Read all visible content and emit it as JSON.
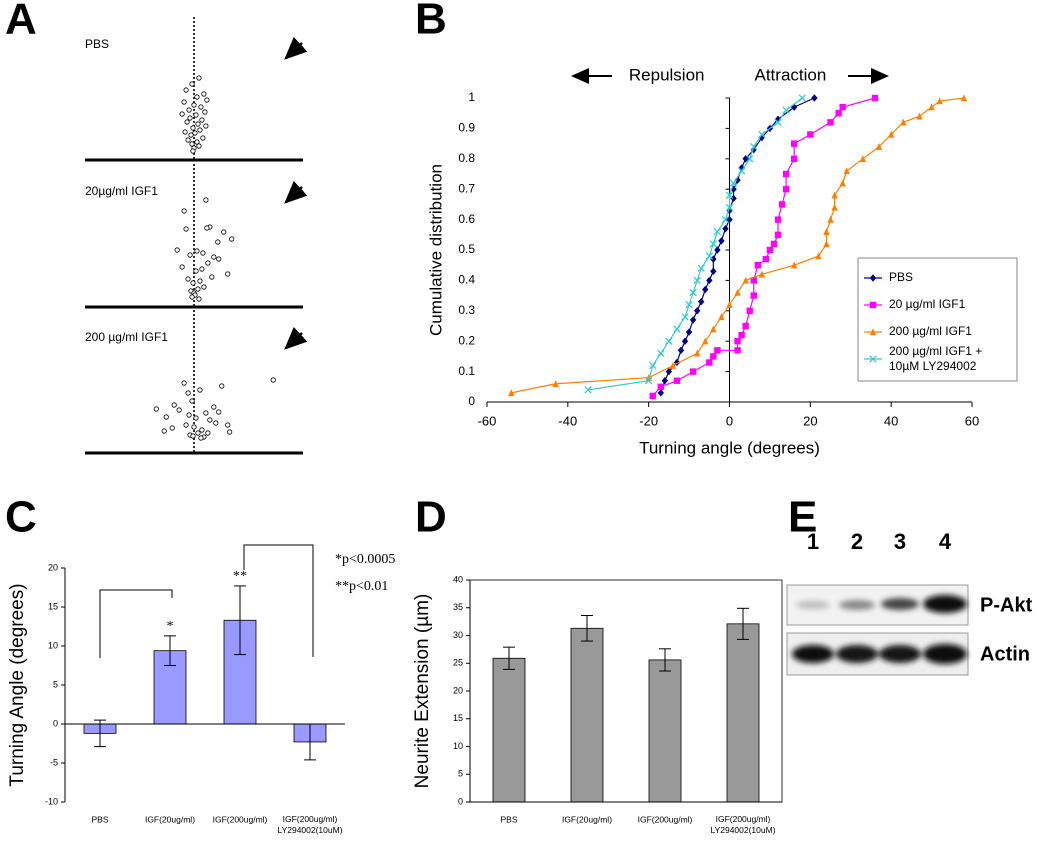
{
  "chart_data": [
    {
      "type": "scatter",
      "panel": "A",
      "title": "PBS",
      "xlim": [
        -110,
        110
      ],
      "ylim": [
        0,
        145
      ],
      "x": [
        5,
        -2,
        10,
        -8,
        3,
        13,
        -10,
        0,
        7,
        -5,
        11,
        -12,
        2,
        -4,
        8,
        -7,
        4,
        12,
        -1,
        6,
        -9,
        1,
        -3,
        9,
        -6,
        3,
        -2,
        5,
        0,
        -1
      ],
      "values": [
        82,
        76,
        66,
        70,
        63,
        60,
        58,
        55,
        53,
        50,
        48,
        46,
        45,
        42,
        40,
        38,
        36,
        34,
        32,
        30,
        28,
        27,
        25,
        22,
        20,
        18,
        16,
        14,
        12,
        9
      ]
    },
    {
      "type": "scatter",
      "title": "20µg/ml IGF1",
      "xlim": [
        -110,
        110
      ],
      "ylim": [
        0,
        145
      ],
      "x": [
        12,
        -10,
        16,
        13,
        -8,
        30,
        38,
        24,
        -17,
        3,
        9,
        -4,
        20,
        25,
        14,
        -12,
        8,
        2,
        34,
        18,
        -6,
        6,
        -1,
        10,
        4,
        -3,
        0,
        1,
        -2,
        5
      ],
      "values": [
        107,
        96,
        80,
        79,
        78,
        75,
        68,
        65,
        57,
        56,
        54,
        52,
        50,
        48,
        44,
        40,
        38,
        36,
        33,
        30,
        28,
        26,
        24,
        20,
        18,
        16,
        14,
        12,
        10,
        8
      ]
    },
    {
      "type": "scatter",
      "title": "200 µg/ml IGF1",
      "xlim": [
        -110,
        110
      ],
      "ylim": [
        0,
        145
      ],
      "x": [
        80,
        -10,
        28,
        6,
        -6,
        -2,
        -20,
        20,
        -38,
        -15,
        25,
        12,
        -5,
        -28,
        2,
        16,
        22,
        -8,
        34,
        0,
        -22,
        8,
        -30,
        4,
        14,
        36,
        -4,
        -1,
        10,
        7
      ],
      "values": [
        73,
        70,
        67,
        63,
        60,
        52,
        48,
        46,
        44,
        43,
        41,
        40,
        38,
        36,
        35,
        33,
        30,
        28,
        28,
        26,
        25,
        23,
        22,
        20,
        20,
        21,
        18,
        17,
        16,
        15
      ]
    },
    {
      "type": "line",
      "panel": "B",
      "xlabel": "Turning angle (degrees)",
      "ylabel": "Cumulative distribution",
      "annotations": [
        "Repulsion",
        "Attraction"
      ],
      "legend": "right",
      "xlim": [
        -60,
        60
      ],
      "xticks": [
        -60,
        -40,
        -20,
        0,
        20,
        40,
        60
      ],
      "ylim": [
        0,
        1
      ],
      "yticks": [
        0,
        0.1,
        0.2,
        0.3,
        0.4,
        0.5,
        0.6,
        0.7,
        0.8,
        0.9,
        1
      ],
      "series": [
        {
          "name": "PBS",
          "color": "#000080",
          "marker": "diamond",
          "x": [
            -17,
            -16,
            -15,
            -13,
            -12,
            -11,
            -10,
            -9,
            -8,
            -7,
            -6,
            -5,
            -4,
            -4,
            -3,
            -2,
            -1,
            0,
            0,
            1,
            1,
            2,
            3,
            4,
            6,
            8,
            10,
            12,
            16,
            21
          ],
          "values": [
            0.03,
            0.07,
            0.1,
            0.13,
            0.17,
            0.2,
            0.23,
            0.27,
            0.3,
            0.33,
            0.37,
            0.4,
            0.43,
            0.47,
            0.5,
            0.53,
            0.57,
            0.6,
            0.63,
            0.67,
            0.7,
            0.73,
            0.77,
            0.8,
            0.83,
            0.87,
            0.9,
            0.93,
            0.97,
            1.0
          ]
        },
        {
          "name": "20 µg/ml IGF1",
          "color": "#ff00ff",
          "marker": "square",
          "x": [
            -19,
            -17,
            -13,
            -9,
            -5,
            -4,
            -3,
            2,
            2,
            3,
            4,
            5,
            6,
            6,
            7,
            9,
            10,
            11,
            12,
            12,
            13,
            14,
            14,
            16,
            16,
            20,
            25,
            27,
            28,
            36
          ],
          "values": [
            0.02,
            0.05,
            0.07,
            0.1,
            0.13,
            0.15,
            0.17,
            0.17,
            0.2,
            0.22,
            0.25,
            0.3,
            0.35,
            0.4,
            0.45,
            0.47,
            0.5,
            0.52,
            0.55,
            0.6,
            0.65,
            0.7,
            0.75,
            0.8,
            0.85,
            0.88,
            0.92,
            0.95,
            0.97,
            1.0
          ]
        },
        {
          "name": "200 µg/ml IGF1",
          "color": "#ff8000",
          "marker": "triangle",
          "x": [
            -54,
            -43,
            -20,
            -14,
            -8,
            -6,
            -4,
            -2,
            0,
            2,
            4,
            8,
            16,
            22,
            24,
            24,
            25,
            26,
            26,
            28,
            29,
            33,
            37,
            40,
            43,
            47,
            50,
            52,
            58
          ],
          "values": [
            0.03,
            0.06,
            0.08,
            0.12,
            0.16,
            0.2,
            0.24,
            0.28,
            0.32,
            0.36,
            0.4,
            0.42,
            0.45,
            0.48,
            0.52,
            0.56,
            0.6,
            0.64,
            0.68,
            0.72,
            0.76,
            0.8,
            0.84,
            0.88,
            0.92,
            0.94,
            0.97,
            0.99,
            1.0
          ]
        },
        {
          "name": "200 µg/ml IGF1 + 10µM LY294002",
          "color": "#33cccc",
          "marker": "cross",
          "x": [
            -35,
            -20,
            -19,
            -17,
            -15,
            -13,
            -11,
            -10,
            -9,
            -8,
            -7,
            -5,
            -4,
            -3,
            -1,
            0,
            0,
            1,
            3,
            5,
            6,
            8,
            12,
            14,
            18
          ],
          "values": [
            0.04,
            0.07,
            0.12,
            0.16,
            0.2,
            0.24,
            0.28,
            0.32,
            0.36,
            0.4,
            0.44,
            0.48,
            0.52,
            0.56,
            0.6,
            0.64,
            0.68,
            0.72,
            0.76,
            0.8,
            0.84,
            0.88,
            0.92,
            0.96,
            1.0
          ]
        }
      ]
    },
    {
      "type": "bar",
      "panel": "C",
      "ylabel": "Turning Angle (degrees)",
      "color": "#9999ff",
      "categories": [
        "PBS",
        "IGF(20ug/ml)",
        "IGF(200ug/ml)",
        "IGF(200ug/ml) LY294002(10uM)"
      ],
      "values": [
        -1.2,
        9.4,
        13.3,
        -2.3
      ],
      "errors": [
        1.7,
        1.9,
        4.4,
        2.3
      ],
      "significance": [
        null,
        "*",
        "**",
        null
      ],
      "notes": [
        "*p<0.0005",
        "**p<0.01"
      ],
      "ylim": [
        -10,
        20
      ],
      "yticks": [
        -10,
        -5,
        0,
        5,
        10,
        15,
        20
      ]
    },
    {
      "type": "bar",
      "panel": "D",
      "ylabel": "Neurite Extension (µm)",
      "color": "#999999",
      "frame": true,
      "categories": [
        "PBS",
        "IGF(20ug/ml)",
        "IGF(200ug/ml)",
        "IGF(200ug/ml) LY294002(10uM)"
      ],
      "values": [
        25.9,
        31.3,
        25.6,
        32.1
      ],
      "errors": [
        2.0,
        2.3,
        2.0,
        2.8
      ],
      "ylim": [
        0,
        40
      ],
      "yticks": [
        0,
        5,
        10,
        15,
        20,
        25,
        30,
        35,
        40
      ]
    }
  ],
  "blot": {
    "panel": "E",
    "lanes": [
      "1",
      "2",
      "3",
      "4"
    ],
    "rows": [
      "P-Akt",
      "Actin"
    ]
  }
}
